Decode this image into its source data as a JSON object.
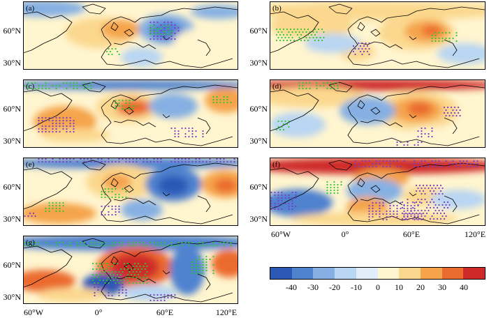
{
  "panels": [
    {
      "id": "a",
      "label": "(a)"
    },
    {
      "id": "b",
      "label": "(b)"
    },
    {
      "id": "c",
      "label": "(c)"
    },
    {
      "id": "d",
      "label": "(d)"
    },
    {
      "id": "e",
      "label": "(e)"
    },
    {
      "id": "f",
      "label": "(f)"
    },
    {
      "id": "g",
      "label": "(g)"
    }
  ],
  "axes": {
    "lat_labels": [
      "60°N",
      "30°N"
    ],
    "lon_labels": [
      "60°W",
      "0°",
      "60°E",
      "120°E"
    ]
  },
  "colorbar": {
    "ticks": [
      "-40",
      "-30",
      "-20",
      "-10",
      "0",
      "10",
      "20",
      "30",
      "40"
    ],
    "colors": [
      "#2c59b5",
      "#4f82cf",
      "#86b0e3",
      "#b9d6f2",
      "#e1eef9",
      "#fff5cf",
      "#fbd88e",
      "#f5a44c",
      "#eb6b2f",
      "#cf2a29"
    ]
  }
}
